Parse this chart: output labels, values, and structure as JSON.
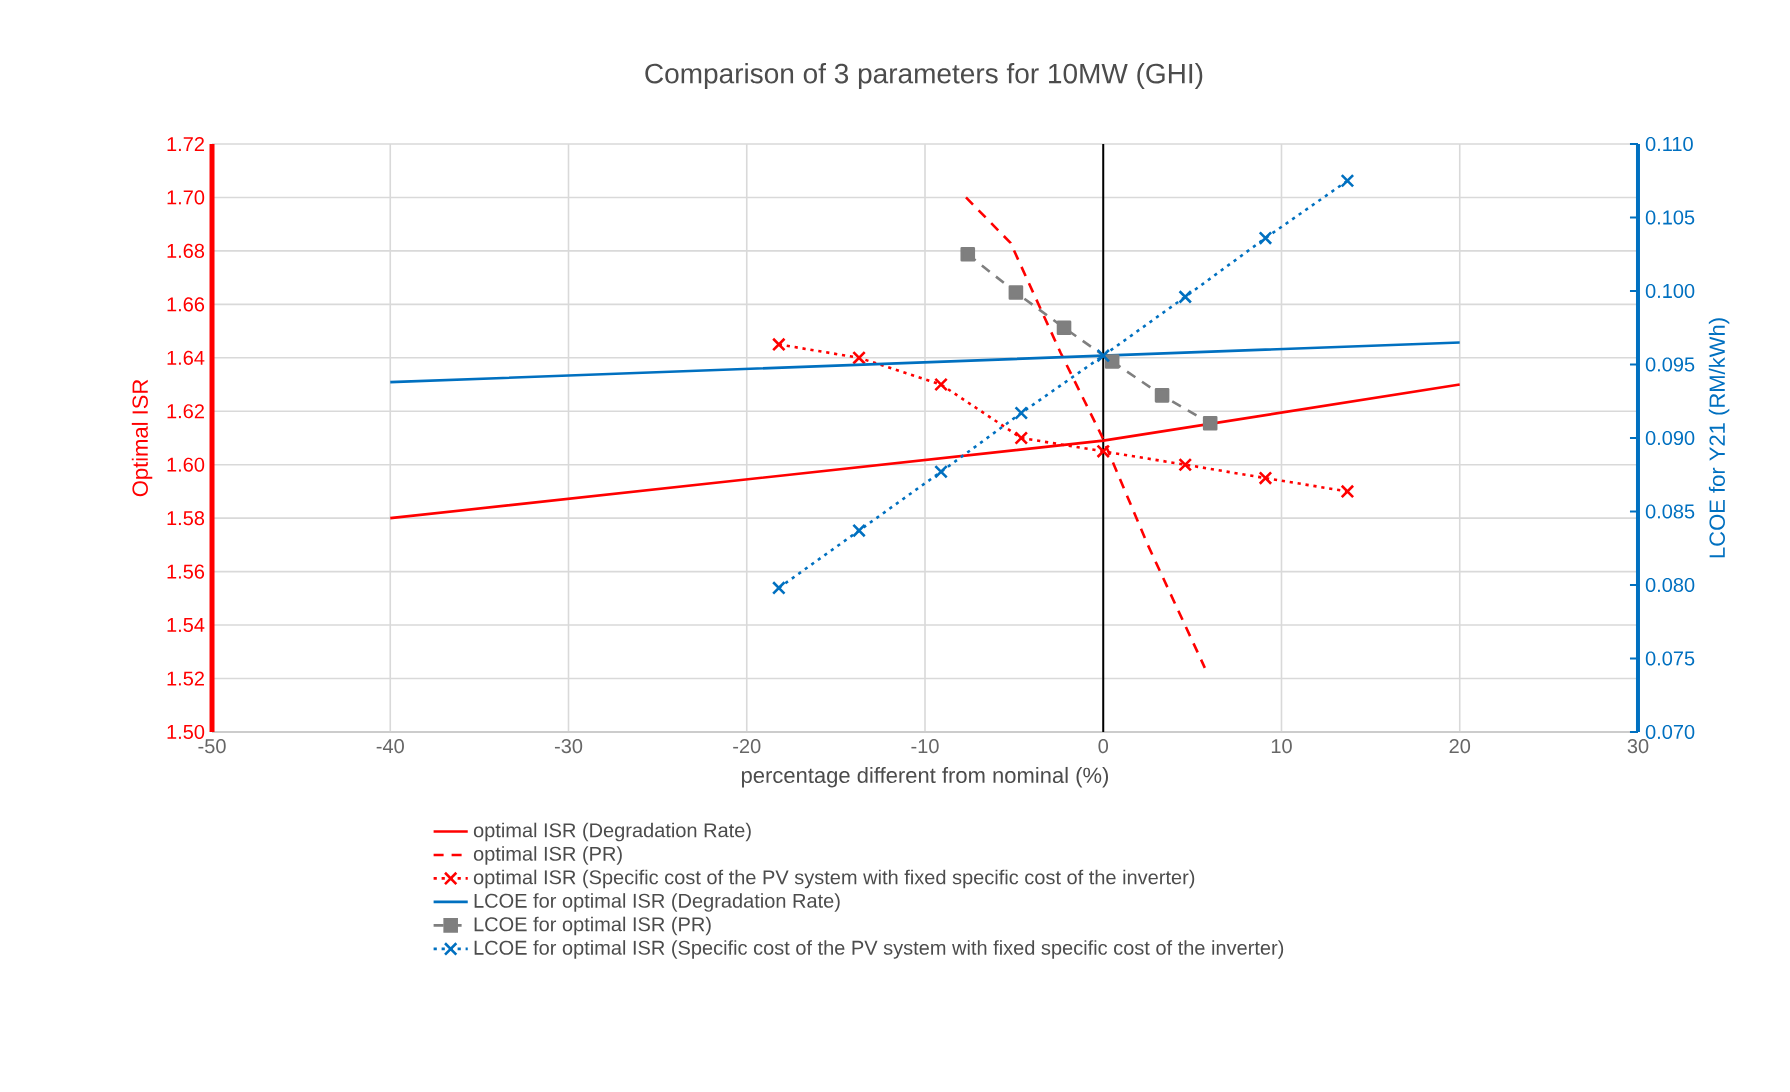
{
  "chart_data": {
    "type": "line",
    "title": "Comparison of 3 parameters for 10MW (GHI)",
    "xlabel": "percentage different from nominal (%)",
    "ylabel": "Optimal ISR",
    "y2label": "LCOE for Y21 (RM/kWh)",
    "xlim": [
      -50,
      30
    ],
    "xticks": [
      -50,
      -40,
      -30,
      -20,
      -10,
      0,
      10,
      20,
      30
    ],
    "ylim": [
      1.5,
      1.72
    ],
    "yticks": [
      {
        "value": 1.5,
        "label": "1.50"
      },
      {
        "value": 1.52,
        "label": "1.52"
      },
      {
        "value": 1.54,
        "label": "1.54"
      },
      {
        "value": 1.56,
        "label": "1.56"
      },
      {
        "value": 1.58,
        "label": "1.58"
      },
      {
        "value": 1.6,
        "label": "1.60"
      },
      {
        "value": 1.62,
        "label": "1.62"
      },
      {
        "value": 1.64,
        "label": "1.64"
      },
      {
        "value": 1.66,
        "label": "1.66"
      },
      {
        "value": 1.68,
        "label": "1.68"
      },
      {
        "value": 1.7,
        "label": "1.70"
      },
      {
        "value": 1.72,
        "label": "1.72"
      }
    ],
    "y2lim": [
      0.07,
      0.11
    ],
    "y2ticks": [
      {
        "value": 0.07,
        "label": "0.070"
      },
      {
        "value": 0.075,
        "label": "0.075"
      },
      {
        "value": 0.08,
        "label": "0.080"
      },
      {
        "value": 0.085,
        "label": "0.085"
      },
      {
        "value": 0.09,
        "label": "0.090"
      },
      {
        "value": 0.095,
        "label": "0.095"
      },
      {
        "value": 0.1,
        "label": "0.100"
      },
      {
        "value": 0.105,
        "label": "0.105"
      },
      {
        "value": 0.11,
        "label": "0.110"
      }
    ],
    "grid": true,
    "legend": "bottom",
    "ref_lines": [
      {
        "axis": "x",
        "value": 0,
        "color": "#000000"
      }
    ],
    "series": [
      {
        "name": "optimal ISR (Degradation Rate)",
        "color": "#ff0000",
        "line_style": "solid",
        "marker": "none",
        "x": [
          -40,
          0,
          20
        ],
        "values": [
          1.58,
          1.609,
          1.63
        ]
      },
      {
        "name": "optimal ISR (PR)",
        "color": "#ff0000",
        "line_style": "dashed",
        "marker": "none",
        "x": [
          -7.7,
          -5.2,
          -2.4,
          -0.1,
          2.5,
          5.7
        ],
        "values": [
          1.7,
          1.683,
          1.642,
          1.611,
          1.57,
          1.524
        ]
      },
      {
        "name": "optimal ISR (Specific cost of the PV system with fixed specific cost of the inverter)",
        "color": "#ff0000",
        "line_style": "dotted",
        "marker": "cross",
        "x": [
          -18.2,
          -13.7,
          -9.1,
          -4.6,
          0,
          4.6,
          9.1,
          13.7
        ],
        "values": [
          1.645,
          1.64,
          1.63,
          1.61,
          1.605,
          1.6,
          1.595,
          1.59
        ]
      },
      {
        "name": "LCOE for optimal ISR (Degradation Rate)",
        "color": "#0070c0",
        "line_style": "solid",
        "marker": "none",
        "axis": "y2",
        "x": [
          -40,
          0,
          20
        ],
        "values": [
          0.0938,
          0.0956,
          0.0965
        ]
      },
      {
        "name": "LCOE for optimal ISR (PR)",
        "color": "#7f7f7f",
        "line_style": "dashed",
        "marker": "square",
        "axis": "y2",
        "x": [
          -7.6,
          -4.9,
          -2.2,
          0.5,
          3.3,
          6.0
        ],
        "values": [
          0.1025,
          0.0999,
          0.0975,
          0.0952,
          0.0929,
          0.091
        ]
      },
      {
        "name": "LCOE for optimal ISR (Specific cost of the PV system with fixed specific cost of the inverter)",
        "color": "#0070c0",
        "line_style": "dotted",
        "marker": "cross",
        "axis": "y2",
        "x": [
          -18.2,
          -13.7,
          -9.1,
          -4.6,
          0,
          4.6,
          9.1,
          13.7
        ],
        "values": [
          0.0798,
          0.0837,
          0.0877,
          0.0917,
          0.0956,
          0.0996,
          0.1036,
          0.1075
        ]
      }
    ]
  }
}
